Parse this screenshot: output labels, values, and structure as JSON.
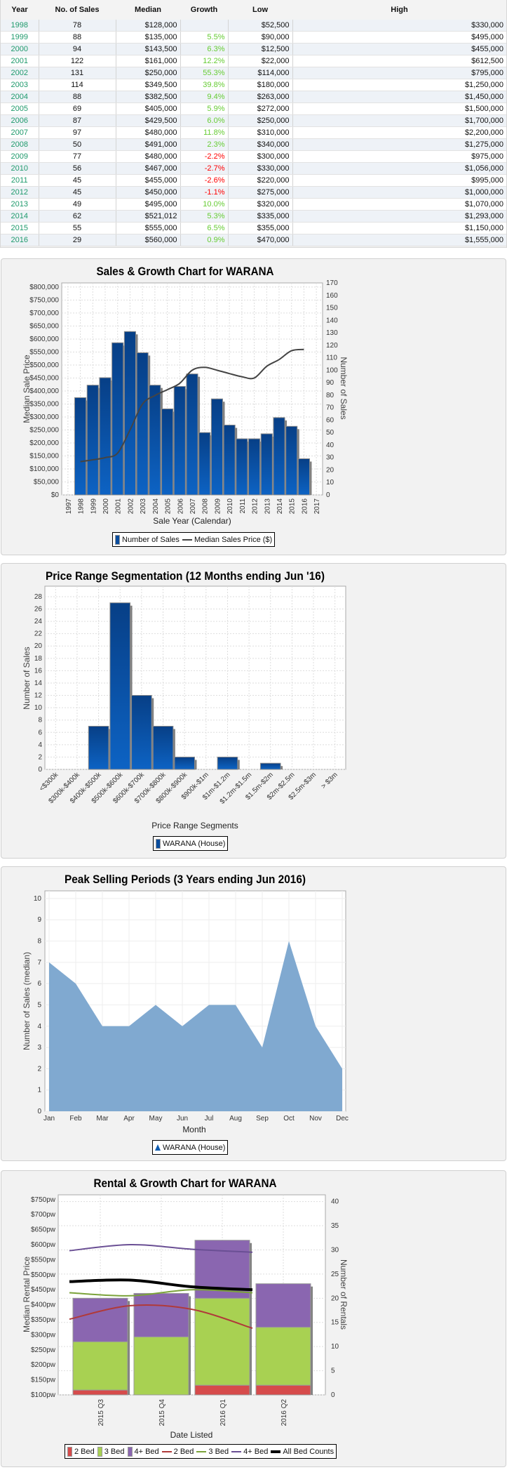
{
  "table": {
    "headers": [
      "Year",
      "No. of Sales",
      "Median",
      "Growth",
      "Low",
      "High"
    ],
    "rows": [
      [
        "1998",
        "78",
        "$128,000",
        "",
        "$52,500",
        "$330,000"
      ],
      [
        "1999",
        "88",
        "$135,000",
        "5.5%",
        "$90,000",
        "$495,000"
      ],
      [
        "2000",
        "94",
        "$143,500",
        "6.3%",
        "$12,500",
        "$455,000"
      ],
      [
        "2001",
        "122",
        "$161,000",
        "12.2%",
        "$22,000",
        "$612,500"
      ],
      [
        "2002",
        "131",
        "$250,000",
        "55.3%",
        "$114,000",
        "$795,000"
      ],
      [
        "2003",
        "114",
        "$349,500",
        "39.8%",
        "$180,000",
        "$1,250,000"
      ],
      [
        "2004",
        "88",
        "$382,500",
        "9.4%",
        "$263,000",
        "$1,450,000"
      ],
      [
        "2005",
        "69",
        "$405,000",
        "5.9%",
        "$272,000",
        "$1,500,000"
      ],
      [
        "2006",
        "87",
        "$429,500",
        "6.0%",
        "$250,000",
        "$1,700,000"
      ],
      [
        "2007",
        "97",
        "$480,000",
        "11.8%",
        "$310,000",
        "$2,200,000"
      ],
      [
        "2008",
        "50",
        "$491,000",
        "2.3%",
        "$340,000",
        "$1,275,000"
      ],
      [
        "2009",
        "77",
        "$480,000",
        "-2.2%",
        "$300,000",
        "$975,000"
      ],
      [
        "2010",
        "56",
        "$467,000",
        "-2.7%",
        "$330,000",
        "$1,056,000"
      ],
      [
        "2011",
        "45",
        "$455,000",
        "-2.6%",
        "$220,000",
        "$995,000"
      ],
      [
        "2012",
        "45",
        "$450,000",
        "-1.1%",
        "$275,000",
        "$1,000,000"
      ],
      [
        "2013",
        "49",
        "$495,000",
        "10.0%",
        "$320,000",
        "$1,070,000"
      ],
      [
        "2014",
        "62",
        "$521,012",
        "5.3%",
        "$335,000",
        "$1,293,000"
      ],
      [
        "2015",
        "55",
        "$555,000",
        "6.5%",
        "$355,000",
        "$1,150,000"
      ],
      [
        "2016",
        "29",
        "$560,000",
        "0.9%",
        "$470,000",
        "$1,555,000"
      ]
    ],
    "colors": {
      "year": "#1f9a6c",
      "growth_positive": "#66cc33",
      "growth_negative": "#ff0000"
    }
  },
  "chart_data": [
    {
      "type": "bar+line",
      "title": "Sales & Growth Chart for WARANA",
      "xlabel": "Sale Year (Calendar)",
      "ylabel_left": "Median Sale Price",
      "ylabel_right": "Number of Sales",
      "categories": [
        "1997",
        "1998",
        "1999",
        "2000",
        "2001",
        "2002",
        "2003",
        "2004",
        "2005",
        "2006",
        "2007",
        "2008",
        "2009",
        "2010",
        "2011",
        "2012",
        "2013",
        "2014",
        "2015",
        "2016",
        "2017"
      ],
      "left_ticks": [
        "$0",
        "$50,000",
        "$100,000",
        "$150,000",
        "$200,000",
        "$250,000",
        "$300,000",
        "$350,000",
        "$400,000",
        "$450,000",
        "$500,000",
        "$550,000",
        "$600,000",
        "$650,000",
        "$700,000",
        "$750,000",
        "$800,000"
      ],
      "left_tick_values": [
        0,
        50000,
        100000,
        150000,
        200000,
        250000,
        300000,
        350000,
        400000,
        450000,
        500000,
        550000,
        600000,
        650000,
        700000,
        750000,
        800000
      ],
      "left_range": [
        0,
        816000
      ],
      "right_ticks": [
        "0",
        "10",
        "20",
        "30",
        "40",
        "50",
        "60",
        "70",
        "80",
        "90",
        "100",
        "110",
        "120",
        "130",
        "140",
        "150",
        "160",
        "170"
      ],
      "right_tick_values": [
        0,
        10,
        20,
        30,
        40,
        50,
        60,
        70,
        80,
        90,
        100,
        110,
        120,
        130,
        140,
        150,
        160,
        170
      ],
      "right_range": [
        0,
        170
      ],
      "grid": true,
      "legend_position": "bottom",
      "series": [
        {
          "name": "Number of Sales",
          "type": "bar",
          "axis": "right",
          "color": "#0a4d9e",
          "x": [
            "1998",
            "1999",
            "2000",
            "2001",
            "2002",
            "2003",
            "2004",
            "2005",
            "2006",
            "2007",
            "2008",
            "2009",
            "2010",
            "2011",
            "2012",
            "2013",
            "2014",
            "2015",
            "2016"
          ],
          "values": [
            78,
            88,
            94,
            122,
            131,
            114,
            88,
            69,
            87,
            97,
            50,
            77,
            56,
            45,
            45,
            49,
            62,
            55,
            29
          ]
        },
        {
          "name": "Median Sales Price ($)",
          "type": "line",
          "axis": "left",
          "color": "#444444",
          "x": [
            "1998",
            "1999",
            "2000",
            "2001",
            "2002",
            "2003",
            "2004",
            "2005",
            "2006",
            "2007",
            "2008",
            "2009",
            "2010",
            "2011",
            "2012",
            "2013",
            "2014",
            "2015",
            "2016"
          ],
          "values": [
            128000,
            135000,
            143500,
            161000,
            250000,
            349500,
            382500,
            405000,
            429500,
            480000,
            491000,
            480000,
            467000,
            455000,
            450000,
            495000,
            521012,
            555000,
            560000
          ]
        }
      ]
    },
    {
      "type": "bar",
      "title": "Price Range Segmentation (12 Months ending Jun '16)",
      "xlabel": "Price Range Segments",
      "ylabel": "Number of Sales",
      "categories": [
        "<$300k",
        "$300k-$400k",
        "$400k-$500k",
        "$500k-$600k",
        "$600k-$700k",
        "$700k-$800k",
        "$800k-$900k",
        "$900k-$1m",
        "$1m-$1.2m",
        "$1.2m-$1.5m",
        "$1.5m-$2m",
        "$2m-$2.5m",
        "$2.5m-$3m",
        "> $3m"
      ],
      "values": [
        0,
        0,
        7,
        27,
        12,
        7,
        2,
        0,
        2,
        0,
        1,
        0,
        0,
        0
      ],
      "y_ticks": [
        "0",
        "2",
        "4",
        "6",
        "8",
        "10",
        "12",
        "14",
        "16",
        "18",
        "20",
        "22",
        "24",
        "26",
        "28"
      ],
      "y_tick_values": [
        0,
        2,
        4,
        6,
        8,
        10,
        12,
        14,
        16,
        18,
        20,
        22,
        24,
        26,
        28
      ],
      "ylim": [
        0,
        29.7
      ],
      "grid": true,
      "legend_position": "bottom",
      "series": [
        {
          "name": "WARANA (House)",
          "color": "#0a4d9e"
        }
      ]
    },
    {
      "type": "area",
      "title": "Peak Selling Periods (3 Years ending Jun 2016)",
      "xlabel": "Month",
      "ylabel": "Number of Sales (median)",
      "categories": [
        "Jan",
        "Feb",
        "Mar",
        "Apr",
        "May",
        "Jun",
        "Jul",
        "Aug",
        "Sep",
        "Oct",
        "Nov",
        "Dec"
      ],
      "values": [
        7,
        6,
        4,
        4,
        5,
        4,
        5,
        5,
        3,
        8,
        4,
        2
      ],
      "y_ticks": [
        "0",
        "1",
        "2",
        "3",
        "4",
        "5",
        "6",
        "7",
        "8",
        "9",
        "10"
      ],
      "y_tick_values": [
        0,
        1,
        2,
        3,
        4,
        5,
        6,
        7,
        8,
        9,
        10
      ],
      "ylim": [
        0,
        10.36
      ],
      "grid": true,
      "legend_position": "bottom",
      "series": [
        {
          "name": "WARANA (House)",
          "color": "#80a9d0"
        }
      ]
    },
    {
      "type": "stacked-bar+line",
      "title": "Rental & Growth Chart for WARANA",
      "xlabel": "Date Listed",
      "ylabel_left": "Median Rental Price",
      "ylabel_right": "Number of Rentals",
      "categories": [
        "2015 Q3",
        "2015 Q4",
        "2016 Q1",
        "2016 Q2"
      ],
      "left_ticks": [
        "$100pw",
        "$150pw",
        "$200pw",
        "$250pw",
        "$300pw",
        "$350pw",
        "$400pw",
        "$450pw",
        "$500pw",
        "$550pw",
        "$600pw",
        "$650pw",
        "$700pw",
        "$750pw"
      ],
      "left_tick_values": [
        100,
        150,
        200,
        250,
        300,
        350,
        400,
        450,
        500,
        550,
        600,
        650,
        700,
        750
      ],
      "left_range": [
        100,
        766
      ],
      "right_ticks": [
        "0",
        "5",
        "10",
        "15",
        "20",
        "25",
        "30",
        "35",
        "40"
      ],
      "right_tick_values": [
        0,
        5,
        10,
        15,
        20,
        25,
        30,
        35,
        40
      ],
      "right_range": [
        0,
        41.4
      ],
      "grid": true,
      "legend_position": "bottom",
      "bar_series": [
        {
          "name": "2 Bed",
          "color": "#d64b4b",
          "values": [
            1,
            0,
            2,
            2
          ]
        },
        {
          "name": "3 Bed",
          "color": "#a8d152",
          "values": [
            10,
            12,
            18,
            12
          ]
        },
        {
          "name": "4+ Bed",
          "color": "#8a66b0",
          "values": [
            9,
            9,
            12,
            9
          ]
        }
      ],
      "line_series": [
        {
          "name": "2 Bed",
          "color": "#b03a3a",
          "width": 2,
          "values": [
            352,
            397,
            385,
            322
          ]
        },
        {
          "name": "3 Bed",
          "color": "#7ba33a",
          "width": 2,
          "values": [
            440,
            430,
            450,
            440
          ]
        },
        {
          "name": "4+ Bed",
          "color": "#6a4f94",
          "width": 2,
          "values": [
            580,
            600,
            585,
            575
          ]
        },
        {
          "name": "All Bed Counts",
          "color": "#000000",
          "width": 4,
          "values": [
            477,
            482,
            460,
            450
          ]
        }
      ]
    }
  ]
}
